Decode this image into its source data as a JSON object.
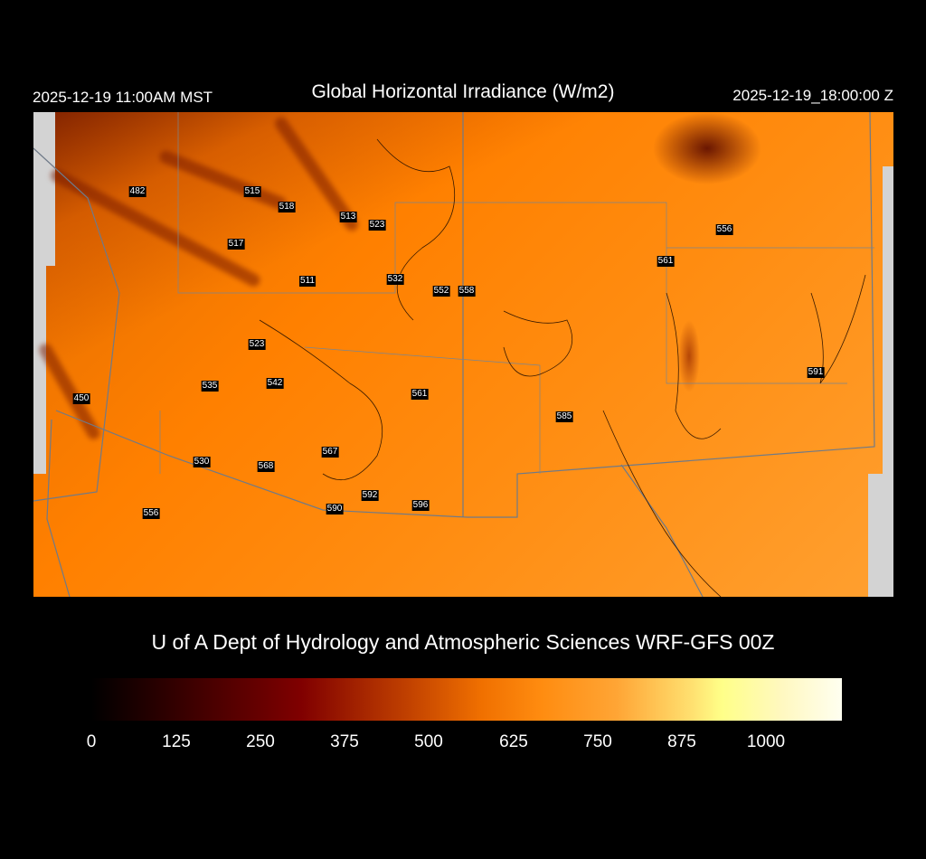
{
  "header": {
    "local_time": "2025-12-19 11:00AM MST",
    "title": "Global Horizontal Irradiance (W/m2)",
    "valid_time": "2025-12-19_18:00:00 Z"
  },
  "map": {
    "point_labels": [
      "482",
      "515",
      "518",
      "513",
      "523",
      "517",
      "511",
      "532",
      "552",
      "558",
      "556",
      "561",
      "523",
      "535",
      "542",
      "450",
      "561",
      "585",
      "591",
      "567",
      "530",
      "568",
      "592",
      "590",
      "596",
      "556"
    ]
  },
  "footer": {
    "credit": "U of A Dept of Hydrology and Atmospheric Sciences WRF-GFS 00Z"
  },
  "colorbar": {
    "ticks": [
      "0",
      "125",
      "250",
      "375",
      "500",
      "625",
      "750",
      "875",
      "1000"
    ],
    "colors": [
      "#000000",
      "#800000",
      "#c04000",
      "#ff8000",
      "#ffa535",
      "#ffff88",
      "#ffffff"
    ]
  }
}
